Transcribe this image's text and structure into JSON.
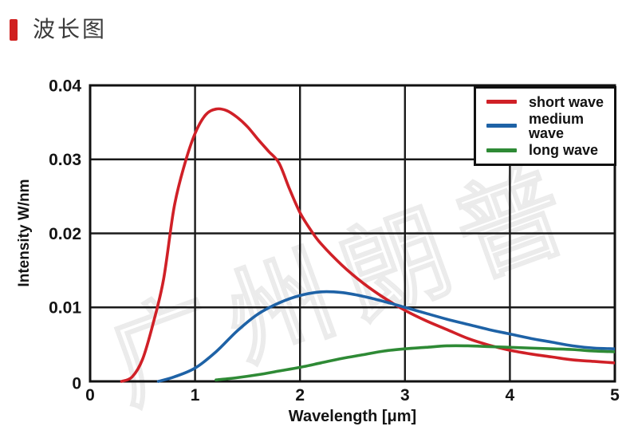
{
  "page": {
    "title": "波长图",
    "accent_color": "#d0201f"
  },
  "watermark": {
    "text": "广州朗普"
  },
  "chart_data": {
    "type": "line",
    "title": "波长图",
    "xlabel": "Wavelength [μm]",
    "ylabel": "Intensity W/nm",
    "xlim": [
      0,
      5
    ],
    "ylim": [
      0,
      0.04
    ],
    "xticks": [
      0,
      1,
      2,
      3,
      4,
      5
    ],
    "xtick_labels": [
      "0",
      "1",
      "2",
      "3",
      "4",
      "5"
    ],
    "yticks": [
      0,
      0.01,
      0.02,
      0.03,
      0.04
    ],
    "ytick_labels": [
      "0",
      "0.01",
      "0.02",
      "0.03",
      "0.04"
    ],
    "grid": true,
    "grid_color": "#1a1a1a",
    "legend_position": "top-right",
    "series": [
      {
        "name": "short wave",
        "color": "#d02027",
        "x": [
          0.3,
          0.4,
          0.5,
          0.6,
          0.7,
          0.8,
          0.9,
          1.0,
          1.1,
          1.2,
          1.3,
          1.4,
          1.5,
          1.6,
          1.7,
          1.8,
          1.9,
          2.0,
          2.1,
          2.2,
          2.4,
          2.6,
          2.8,
          3.0,
          3.2,
          3.4,
          3.6,
          3.8,
          4.0,
          4.2,
          4.4,
          4.6,
          4.8,
          5.0
        ],
        "y": [
          0,
          0.0006,
          0.003,
          0.0078,
          0.0138,
          0.0235,
          0.0293,
          0.0335,
          0.036,
          0.0368,
          0.0366,
          0.0357,
          0.0344,
          0.0327,
          0.0311,
          0.0295,
          0.026,
          0.0228,
          0.0205,
          0.0186,
          0.0157,
          0.0133,
          0.0113,
          0.0096,
          0.0082,
          0.007,
          0.0058,
          0.0049,
          0.0042,
          0.0037,
          0.0033,
          0.0029,
          0.0027,
          0.0025
        ]
      },
      {
        "name": "medium wave",
        "color": "#1e62a6",
        "x": [
          0.65,
          0.8,
          1.0,
          1.2,
          1.4,
          1.6,
          1.8,
          2.0,
          2.2,
          2.4,
          2.6,
          2.8,
          3.0,
          3.2,
          3.4,
          3.6,
          3.8,
          4.0,
          4.2,
          4.4,
          4.6,
          4.8,
          5.0
        ],
        "y": [
          0,
          0.0006,
          0.0018,
          0.004,
          0.0068,
          0.0091,
          0.0106,
          0.0116,
          0.0121,
          0.012,
          0.0115,
          0.0108,
          0.01,
          0.0092,
          0.0084,
          0.0077,
          0.007,
          0.0064,
          0.0058,
          0.0053,
          0.0048,
          0.0045,
          0.0044
        ]
      },
      {
        "name": "long wave",
        "color": "#2e8a35",
        "x": [
          1.2,
          1.4,
          1.6,
          1.8,
          2.0,
          2.2,
          2.4,
          2.6,
          2.8,
          3.0,
          3.2,
          3.4,
          3.6,
          3.8,
          4.0,
          4.2,
          4.4,
          4.6,
          4.8,
          5.0
        ],
        "y": [
          0.0002,
          0.0005,
          0.0009,
          0.0014,
          0.0019,
          0.0025,
          0.0031,
          0.0036,
          0.0041,
          0.0044,
          0.0046,
          0.0048,
          0.0048,
          0.0047,
          0.0046,
          0.0045,
          0.0044,
          0.0043,
          0.0041,
          0.004
        ]
      }
    ]
  }
}
